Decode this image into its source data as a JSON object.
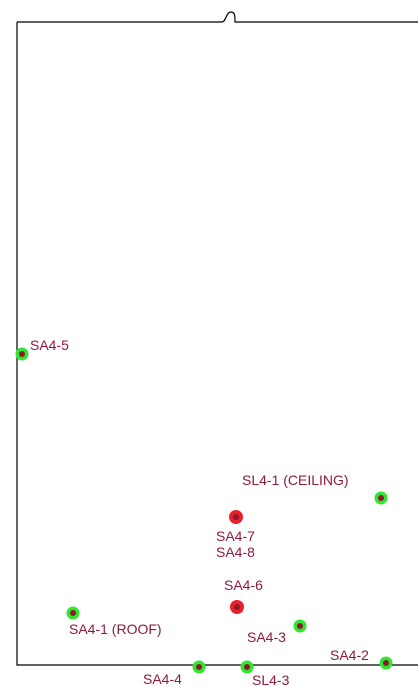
{
  "labels": {
    "sa4_5": "SA4-5",
    "sl4_1": "SL4-1 (CEILING)",
    "sa4_7": "SA4-7",
    "sa4_8": "SA4-8",
    "sa4_6": "SA4-6",
    "sa4_1": "SA4-1 (ROOF)",
    "sa4_3": "SA4-3",
    "sa4_2": "SA4-2",
    "sa4_4": "SA4-4",
    "sl4_3": "SL4-3"
  }
}
